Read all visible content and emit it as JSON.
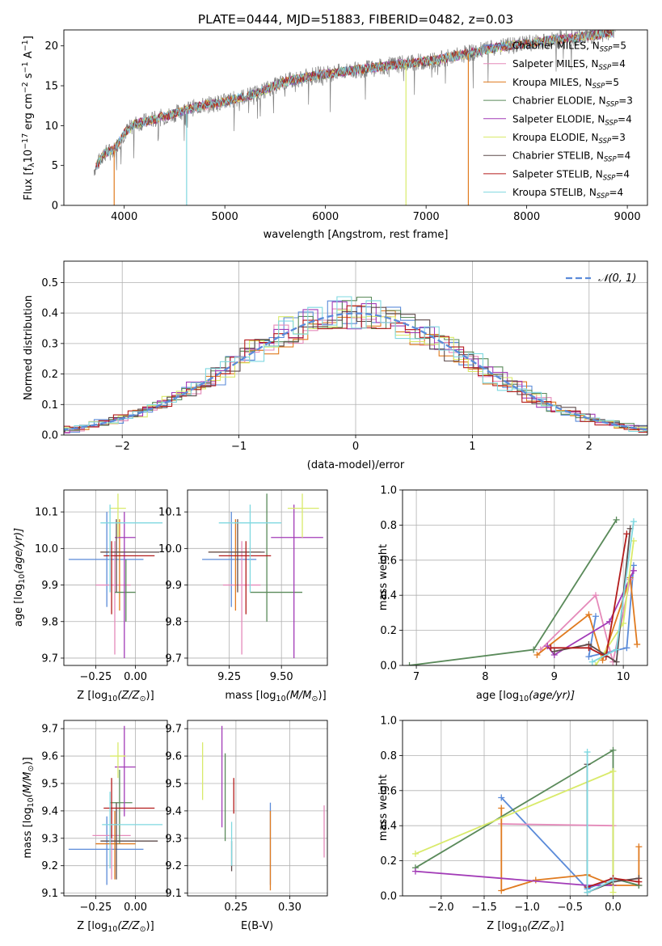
{
  "figure": {
    "title": "PLATE=0444, MJD=51883, FIBERID=0482, z=0.03"
  },
  "colors": {
    "chabrier_miles": "#5b8bd9",
    "salpeter_miles": "#e58aba",
    "kroupa_miles": "#e07a1f",
    "chabrier_elodie": "#5a8a5a",
    "salpeter_elodie": "#a23bb7",
    "kroupa_elodie": "#d9ea6a",
    "chabrier_stelib": "#5e4b4b",
    "salpeter_stelib": "#b31b1b",
    "kroupa_stelib": "#7fd8e0"
  },
  "chart_data": [
    {
      "type": "line",
      "title": "PLATE=0444, MJD=51883, FIBERID=0482, z=0.03",
      "xlabel": "wavelength [Angstrom, rest frame]",
      "ylabel_parts": [
        "Flux [f",
        "λ",
        "10",
        "−17",
        " erg cm",
        "−2",
        " s",
        "−1",
        " A",
        "−1",
        "]"
      ],
      "xlim": [
        3400,
        9200
      ],
      "ylim": [
        0,
        22
      ],
      "xticks": [
        4000,
        5000,
        6000,
        7000,
        8000,
        9000
      ],
      "yticks": [
        0,
        5,
        10,
        15,
        20
      ],
      "data_color": "#808080",
      "continuum_x": [
        3700,
        3800,
        3900,
        4000,
        4100,
        4300,
        4500,
        4700,
        5000,
        5300,
        5600,
        5900,
        6200,
        6500,
        6800,
        7100,
        7400,
        7700,
        8000,
        8300,
        8600,
        8900
      ],
      "continuum_y": [
        4.5,
        6.5,
        7.0,
        9.0,
        10.2,
        10.8,
        11.5,
        12.3,
        13.0,
        14.0,
        15.5,
        16.3,
        16.8,
        17.3,
        17.8,
        18.2,
        19.0,
        19.8,
        20.3,
        20.8,
        21.2,
        21.8
      ],
      "legend": [
        {
          "name": "Chabrier MILES, N",
          "sub": "SSP",
          "tail": "=5",
          "color": "#5b8bd9"
        },
        {
          "name": "Salpeter MILES, N",
          "sub": "SSP",
          "tail": "=4",
          "color": "#e58aba"
        },
        {
          "name": "Kroupa MILES, N",
          "sub": "SSP",
          "tail": "=5",
          "color": "#e07a1f"
        },
        {
          "name": "Chabrier ELODIE, N",
          "sub": "SSP",
          "tail": "=3",
          "color": "#5a8a5a"
        },
        {
          "name": "Salpeter ELODIE, N",
          "sub": "SSP",
          "tail": "=4",
          "color": "#a23bb7"
        },
        {
          "name": "Kroupa ELODIE, N",
          "sub": "SSP",
          "tail": "=3",
          "color": "#d9ea6a"
        },
        {
          "name": "Chabrier STELIB, N",
          "sub": "SSP",
          "tail": "=4",
          "color": "#5e4b4b"
        },
        {
          "name": "Salpeter STELIB, N",
          "sub": "SSP",
          "tail": "=4",
          "color": "#b31b1b"
        },
        {
          "name": "Kroupa STELIB, N",
          "sub": "SSP",
          "tail": "=4",
          "color": "#7fd8e0"
        }
      ],
      "drop_lines": [
        {
          "x": 3900,
          "color": "#e07a1f"
        },
        {
          "x": 4620,
          "color": "#7fd8e0"
        },
        {
          "x": 6800,
          "color": "#d9ea6a"
        },
        {
          "x": 7420,
          "color": "#e07a1f"
        }
      ],
      "grid": false
    },
    {
      "type": "histogram",
      "xlabel": "(data-model)/error",
      "ylabel": "Normed distribution",
      "xlim": [
        -2.5,
        2.5
      ],
      "ylim": [
        0,
        0.57
      ],
      "xticks": [
        -2,
        -1,
        0,
        1,
        2
      ],
      "yticks": [
        0.0,
        0.1,
        0.2,
        0.3,
        0.4,
        0.5
      ],
      "legend": "𝒩(0, 1)",
      "normal_color": "#5b8bd9",
      "grid": true
    },
    {
      "type": "errorbar",
      "xlabel_parts": [
        "Z [log",
        "10",
        "(Z/Z",
        "⊙",
        ")]"
      ],
      "ylabel_parts": [
        "age  [log",
        "10",
        "(age/yr)]"
      ],
      "xlim": [
        -0.45,
        0.2
      ],
      "ylim": [
        9.68,
        10.16
      ],
      "xticks": [
        -0.25,
        0.0
      ],
      "yticks": [
        9.7,
        9.8,
        9.9,
        10.0,
        10.1
      ],
      "points": [
        {
          "x": -0.18,
          "xlo": -0.42,
          "xhi": 0.05,
          "y": 9.97,
          "ylo": 9.84,
          "yhi": 10.1,
          "color": "#5b8bd9"
        },
        {
          "x": -0.13,
          "xlo": -0.25,
          "xhi": -0.03,
          "y": 9.9,
          "ylo": 9.71,
          "yhi": 10.02,
          "color": "#e58aba"
        },
        {
          "x": -0.1,
          "xlo": -0.22,
          "xhi": 0.0,
          "y": 9.99,
          "ylo": 9.83,
          "yhi": 10.08,
          "color": "#e07a1f"
        },
        {
          "x": -0.06,
          "xlo": -0.13,
          "xhi": 0.0,
          "y": 9.88,
          "ylo": 9.8,
          "yhi": 9.97,
          "color": "#5a8a5a"
        },
        {
          "x": -0.07,
          "xlo": -0.13,
          "xhi": -0.0,
          "y": 10.03,
          "ylo": 9.7,
          "yhi": 10.1,
          "color": "#a23bb7"
        },
        {
          "x": -0.11,
          "xlo": -0.16,
          "xhi": -0.06,
          "y": 10.11,
          "ylo": 10.03,
          "yhi": 10.15,
          "color": "#d9ea6a"
        },
        {
          "x": -0.12,
          "xlo": -0.22,
          "xhi": 0.15,
          "y": 9.99,
          "ylo": 9.88,
          "yhi": 10.08,
          "color": "#5e4b4b"
        },
        {
          "x": -0.15,
          "xlo": -0.2,
          "xhi": 0.12,
          "y": 9.98,
          "ylo": 9.82,
          "yhi": 10.02,
          "color": "#b31b1b"
        },
        {
          "x": -0.16,
          "xlo": -0.22,
          "xhi": 0.17,
          "y": 10.07,
          "ylo": 9.88,
          "yhi": 10.12,
          "color": "#7fd8e0"
        }
      ],
      "grid": true
    },
    {
      "type": "errorbar",
      "xlabel_parts": [
        "mass [log",
        "10",
        "(M/M",
        "⊙",
        ")]"
      ],
      "ylabel_parts": [],
      "xlim": [
        9.05,
        9.72
      ],
      "ylim": [
        9.68,
        10.16
      ],
      "xticks": [
        9.25,
        9.5
      ],
      "yticks": [
        9.7,
        9.8,
        9.9,
        10.0,
        10.1
      ],
      "points": [
        {
          "x": 9.26,
          "xlo": 9.12,
          "xhi": 9.38,
          "y": 9.97,
          "ylo": 9.84,
          "yhi": 10.1,
          "color": "#5b8bd9"
        },
        {
          "x": 9.31,
          "xlo": 9.22,
          "xhi": 9.4,
          "y": 9.9,
          "ylo": 9.71,
          "yhi": 10.02,
          "color": "#e58aba"
        },
        {
          "x": 9.28,
          "xlo": 9.15,
          "xhi": 9.4,
          "y": 9.99,
          "ylo": 9.83,
          "yhi": 10.08,
          "color": "#e07a1f"
        },
        {
          "x": 9.43,
          "xlo": 9.35,
          "xhi": 9.6,
          "y": 9.88,
          "ylo": 9.8,
          "yhi": 10.15,
          "color": "#5a8a5a"
        },
        {
          "x": 9.56,
          "xlo": 9.45,
          "xhi": 9.7,
          "y": 10.03,
          "ylo": 9.7,
          "yhi": 10.12,
          "color": "#a23bb7"
        },
        {
          "x": 9.6,
          "xlo": 9.53,
          "xhi": 9.68,
          "y": 10.11,
          "ylo": 10.03,
          "yhi": 10.15,
          "color": "#d9ea6a"
        },
        {
          "x": 9.29,
          "xlo": 9.15,
          "xhi": 9.42,
          "y": 9.99,
          "ylo": 9.88,
          "yhi": 10.08,
          "color": "#5e4b4b"
        },
        {
          "x": 9.33,
          "xlo": 9.2,
          "xhi": 9.45,
          "y": 9.98,
          "ylo": 9.82,
          "yhi": 10.02,
          "color": "#b31b1b"
        },
        {
          "x": 9.35,
          "xlo": 9.2,
          "xhi": 9.5,
          "y": 10.07,
          "ylo": 9.88,
          "yhi": 10.12,
          "color": "#7fd8e0"
        }
      ],
      "grid": true
    },
    {
      "type": "line",
      "xlabel_parts": [
        "age  [log",
        "10",
        "(age/yr)]"
      ],
      "ylabel": "mass weight",
      "xlim": [
        6.8,
        10.35
      ],
      "ylim": [
        0,
        1.0
      ],
      "xticks": [
        7,
        8,
        9,
        10
      ],
      "yticks": [
        0.0,
        0.2,
        0.4,
        0.6,
        0.8,
        1.0
      ],
      "series": [
        {
          "color": "#5b8bd9",
          "x": [
            9.6,
            9.5,
            10.05,
            10.15
          ],
          "y": [
            0.28,
            0.05,
            0.1,
            0.57
          ]
        },
        {
          "color": "#e58aba",
          "x": [
            8.8,
            9.6,
            9.85,
            10.1
          ],
          "y": [
            0.09,
            0.4,
            0.02,
            0.49
          ]
        },
        {
          "color": "#e07a1f",
          "x": [
            8.75,
            9.5,
            9.7,
            10.1,
            10.2
          ],
          "y": [
            0.06,
            0.29,
            0.03,
            0.5,
            0.12
          ]
        },
        {
          "color": "#5a8a5a",
          "x": [
            6.9,
            8.7,
            9.9
          ],
          "y": [
            0.0,
            0.09,
            0.83
          ]
        },
        {
          "color": "#a23bb7",
          "x": [
            8.9,
            9.0,
            9.8,
            10.15
          ],
          "y": [
            0.11,
            0.06,
            0.25,
            0.54
          ]
        },
        {
          "color": "#d9ea6a",
          "x": [
            9.6,
            10.0,
            10.15
          ],
          "y": [
            0.0,
            0.24,
            0.71
          ]
        },
        {
          "color": "#5e4b4b",
          "x": [
            9.0,
            9.5,
            9.9,
            10.1
          ],
          "y": [
            0.08,
            0.12,
            0.02,
            0.78
          ]
        },
        {
          "color": "#b31b1b",
          "x": [
            8.95,
            9.5,
            9.75,
            10.05
          ],
          "y": [
            0.1,
            0.1,
            0.05,
            0.75
          ]
        },
        {
          "color": "#7fd8e0",
          "x": [
            9.55,
            9.9,
            10.15
          ],
          "y": [
            0.02,
            0.09,
            0.82
          ]
        }
      ],
      "grid": true
    },
    {
      "type": "errorbar",
      "xlabel_parts": [
        "Z [log",
        "10",
        "(Z/Z",
        "⊙",
        ")]"
      ],
      "ylabel_parts": [
        "mass [log",
        "10",
        "(M/M",
        "⊙",
        ")]"
      ],
      "xlim": [
        -0.45,
        0.2
      ],
      "ylim": [
        9.09,
        9.73
      ],
      "xticks": [
        -0.25,
        0.0
      ],
      "yticks": [
        9.1,
        9.2,
        9.3,
        9.4,
        9.5,
        9.6,
        9.7
      ],
      "points": [
        {
          "x": -0.18,
          "xlo": -0.42,
          "xhi": 0.05,
          "y": 9.26,
          "ylo": 9.13,
          "yhi": 9.38,
          "color": "#5b8bd9"
        },
        {
          "x": -0.15,
          "xlo": -0.27,
          "xhi": -0.03,
          "y": 9.31,
          "ylo": 9.15,
          "yhi": 9.4,
          "color": "#e58aba"
        },
        {
          "x": -0.13,
          "xlo": -0.25,
          "xhi": 0.0,
          "y": 9.28,
          "ylo": 9.15,
          "yhi": 9.4,
          "color": "#e07a1f"
        },
        {
          "x": -0.1,
          "xlo": -0.16,
          "xhi": -0.02,
          "y": 9.43,
          "ylo": 9.28,
          "yhi": 9.55,
          "color": "#5a8a5a"
        },
        {
          "x": -0.07,
          "xlo": -0.13,
          "xhi": -0.0,
          "y": 9.56,
          "ylo": 9.38,
          "yhi": 9.71,
          "color": "#a23bb7"
        },
        {
          "x": -0.11,
          "xlo": -0.16,
          "xhi": -0.06,
          "y": 9.6,
          "ylo": 9.52,
          "yhi": 9.65,
          "color": "#d9ea6a"
        },
        {
          "x": -0.12,
          "xlo": -0.22,
          "xhi": 0.14,
          "y": 9.29,
          "ylo": 9.15,
          "yhi": 9.43,
          "color": "#5e4b4b"
        },
        {
          "x": -0.15,
          "xlo": -0.2,
          "xhi": 0.12,
          "y": 9.41,
          "ylo": 9.3,
          "yhi": 9.52,
          "color": "#b31b1b"
        },
        {
          "x": -0.16,
          "xlo": -0.21,
          "xhi": 0.17,
          "y": 9.35,
          "ylo": 9.19,
          "yhi": 9.47,
          "color": "#7fd8e0"
        }
      ],
      "grid": true
    },
    {
      "type": "errorbar",
      "xlabel": "E(B-V)",
      "ylabel_parts": [],
      "xlim": [
        0.205,
        0.335
      ],
      "ylim": [
        9.09,
        9.73
      ],
      "xticks": [
        0.25,
        0.3
      ],
      "yticks": [
        9.1,
        9.2,
        9.3,
        9.4,
        9.5,
        9.6,
        9.7
      ],
      "points": [
        {
          "x": 0.282,
          "ylo": 9.13,
          "yhi": 9.43,
          "color": "#5b8bd9"
        },
        {
          "x": 0.332,
          "ylo": 9.23,
          "yhi": 9.42,
          "color": "#e58aba"
        },
        {
          "x": 0.282,
          "ylo": 9.11,
          "yhi": 9.4,
          "color": "#e07a1f"
        },
        {
          "x": 0.24,
          "ylo": 9.29,
          "yhi": 9.61,
          "color": "#5a8a5a"
        },
        {
          "x": 0.237,
          "ylo": 9.34,
          "yhi": 9.71,
          "color": "#a23bb7"
        },
        {
          "x": 0.219,
          "ylo": 9.44,
          "yhi": 9.65,
          "color": "#d9ea6a"
        },
        {
          "x": 0.246,
          "ylo": 9.18,
          "yhi": 9.29,
          "color": "#5e4b4b"
        },
        {
          "x": 0.248,
          "ylo": 9.39,
          "yhi": 9.52,
          "color": "#b31b1b"
        },
        {
          "x": 0.246,
          "ylo": 9.2,
          "yhi": 9.36,
          "color": "#7fd8e0"
        }
      ],
      "grid": true
    },
    {
      "type": "line",
      "xlabel_parts": [
        "Z [log",
        "10",
        "(Z/Z",
        "⊙",
        ")]"
      ],
      "ylabel": "mass weight",
      "xlim": [
        -2.45,
        0.4
      ],
      "ylim": [
        0,
        1.0
      ],
      "xticks": [
        -2.0,
        -1.5,
        -1.0,
        -0.5,
        0.0
      ],
      "yticks": [
        0.0,
        0.2,
        0.4,
        0.6,
        0.8,
        1.0
      ],
      "series": [
        {
          "color": "#5b8bd9",
          "x": [
            -1.3,
            -0.3,
            0.0,
            0.3
          ],
          "y": [
            0.56,
            0.04,
            0.1,
            0.06
          ]
        },
        {
          "color": "#e58aba",
          "x": [
            -1.3,
            0.0
          ],
          "y": [
            0.41,
            0.4
          ]
        },
        {
          "color": "#e07a1f",
          "x": [
            -1.3,
            -1.3,
            -0.9,
            -0.3,
            0.0,
            0.3,
            0.3
          ],
          "y": [
            0.5,
            0.03,
            0.09,
            0.12,
            0.06,
            0.06,
            0.28
          ]
        },
        {
          "color": "#5a8a5a",
          "x": [
            -2.3,
            0.0,
            0.0,
            0.3
          ],
          "y": [
            0.16,
            0.83,
            0.1,
            0.06
          ]
        },
        {
          "color": "#a23bb7",
          "x": [
            -2.3,
            -0.3,
            0.0
          ],
          "y": [
            0.14,
            0.06,
            0.06
          ]
        },
        {
          "color": "#d9ea6a",
          "x": [
            -2.3,
            0.0,
            0.0
          ],
          "y": [
            0.24,
            0.71,
            0.02
          ]
        },
        {
          "color": "#5e4b4b",
          "x": [
            -0.3,
            -0.3,
            0.0,
            0.3
          ],
          "y": [
            0.75,
            0.02,
            0.08,
            0.1
          ]
        },
        {
          "color": "#b31b1b",
          "x": [
            -0.3,
            0.0,
            0.3
          ],
          "y": [
            0.05,
            0.1,
            0.08
          ]
        },
        {
          "color": "#7fd8e0",
          "x": [
            -0.3,
            -0.3,
            0.0
          ],
          "y": [
            0.82,
            0.02,
            0.09
          ]
        }
      ],
      "grid": true
    }
  ]
}
